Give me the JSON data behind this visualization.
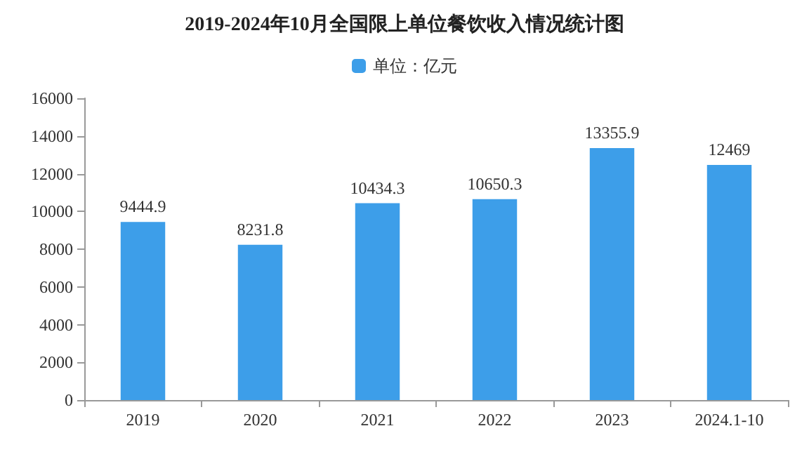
{
  "chart_data": {
    "type": "bar",
    "title": "2019-2024年10月全国限上单位餐饮收入情况统计图",
    "categories": [
      "2019",
      "2020",
      "2021",
      "2022",
      "2023",
      "2024.1-10"
    ],
    "series": [
      {
        "name": "单位：亿元",
        "color": "#3d9ee9",
        "values": [
          9444.9,
          8231.8,
          10434.3,
          10650.3,
          13355.9,
          12469
        ]
      }
    ],
    "ylim": [
      0,
      16000
    ],
    "yticks": [
      0,
      2000,
      4000,
      6000,
      8000,
      10000,
      12000,
      14000,
      16000
    ],
    "data_labels": true,
    "legend": "top",
    "grid": false
  }
}
